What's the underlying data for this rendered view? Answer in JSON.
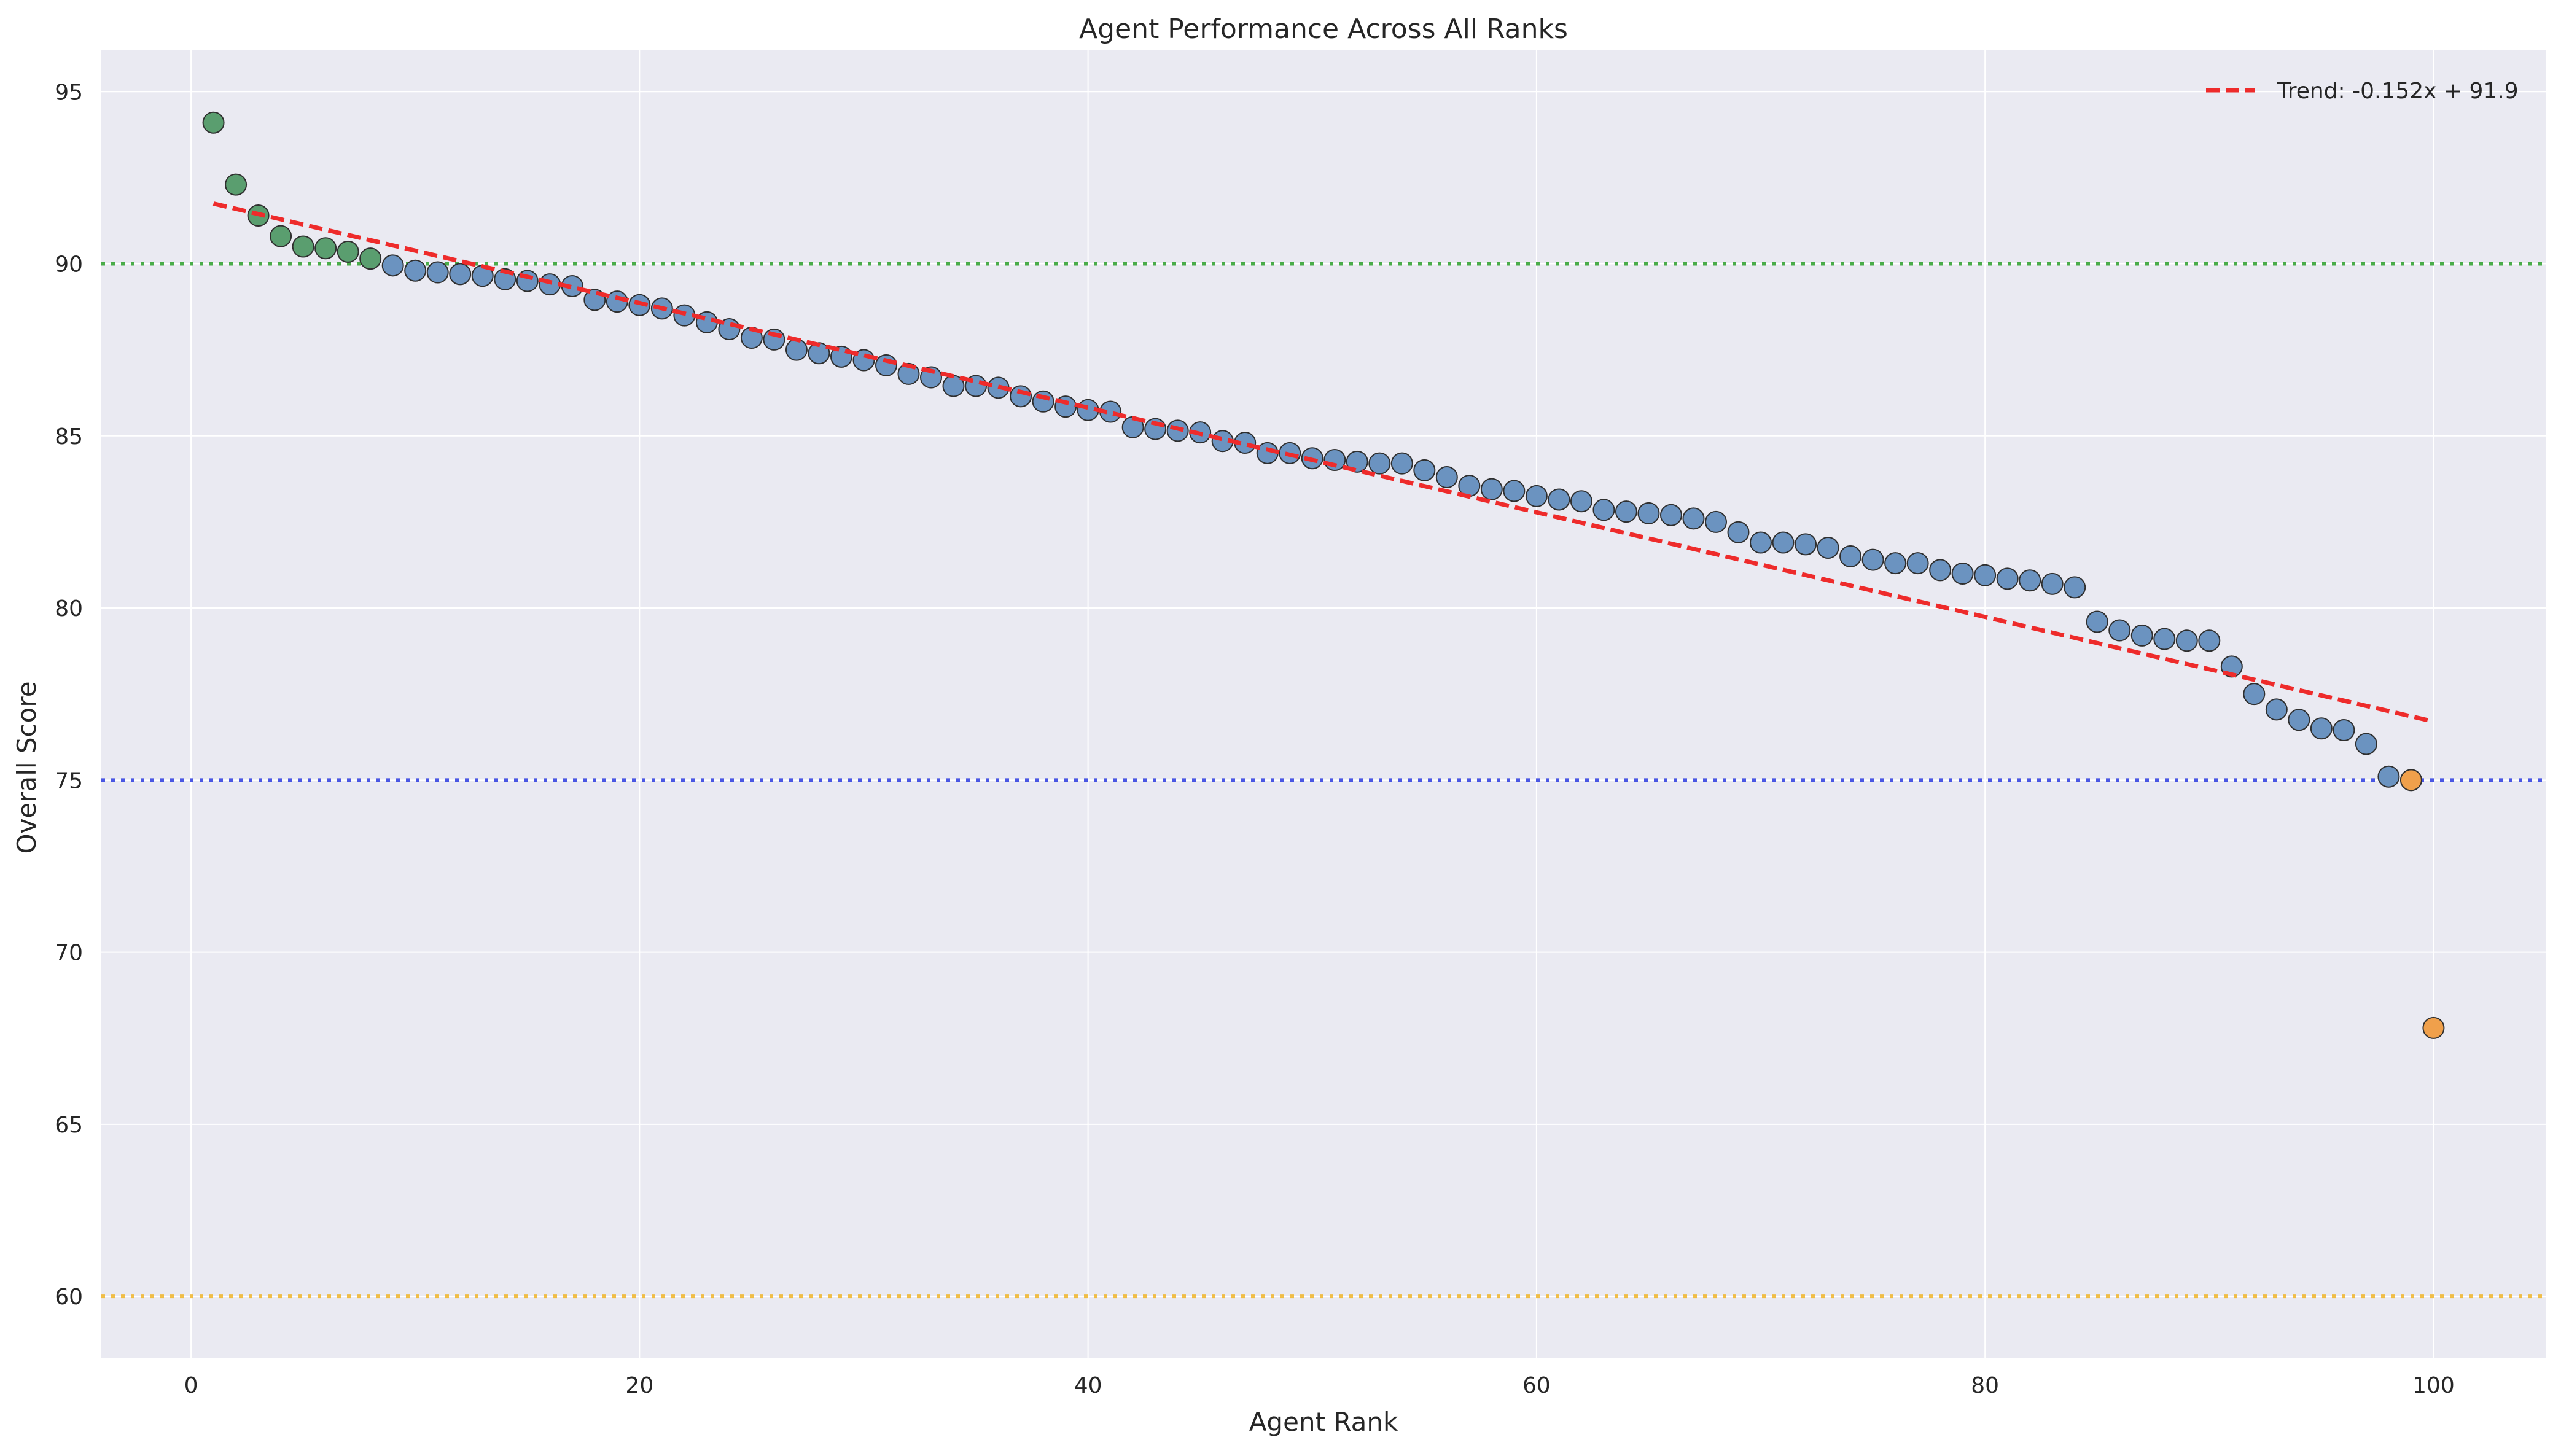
{
  "chart_data": {
    "type": "scatter",
    "title": "Agent Performance Across All Ranks",
    "xlabel": "Agent Rank",
    "ylabel": "Overall Score",
    "xlim": [
      -4,
      105
    ],
    "ylim": [
      58.2,
      96.2
    ],
    "x_ticks": [
      0,
      20,
      40,
      60,
      80,
      100
    ],
    "y_ticks": [
      60,
      65,
      70,
      75,
      80,
      85,
      90,
      95
    ],
    "grid": true,
    "legend_position": "top-right",
    "colors": {
      "background": "#eaeaf2",
      "grid": "#ffffff",
      "top_tier": "#5a9e6f",
      "mid_tier": "#6b93c0",
      "low_tier": "#f0a04b",
      "marker_edge": "#2f2f2f",
      "trend": "#ee2b2b"
    },
    "reference_lines": [
      {
        "y": 90,
        "color": "#2ca02c"
      },
      {
        "y": 75,
        "color": "#2c3ce0"
      },
      {
        "y": 60,
        "color": "#f0b429"
      }
    ],
    "trend": {
      "label": "Trend: -0.152x + 91.9",
      "slope": -0.152,
      "intercept": 91.9,
      "x_start": 1,
      "x_end": 100
    },
    "series": [
      {
        "tier": "top",
        "x": [
          1,
          2,
          3,
          4,
          5,
          6,
          7,
          8
        ],
        "y": [
          94.1,
          92.3,
          91.4,
          90.8,
          90.5,
          90.45,
          90.35,
          90.15
        ]
      },
      {
        "tier": "mid",
        "x": [
          9,
          10,
          11,
          12,
          13,
          14,
          15,
          16,
          17,
          18,
          19,
          20,
          21,
          22,
          23,
          24,
          25,
          26,
          27,
          28,
          29,
          30,
          31,
          32,
          33,
          34,
          35,
          36,
          37,
          38,
          39,
          40,
          41,
          42,
          43,
          44,
          45,
          46,
          47,
          48,
          49,
          50,
          51,
          52,
          53,
          54,
          55,
          56,
          57,
          58,
          59,
          60,
          61,
          62,
          63,
          64,
          65,
          66,
          67,
          68,
          69,
          70,
          71,
          72,
          73,
          74,
          75,
          76,
          77,
          78,
          79,
          80,
          81,
          82,
          83,
          84,
          85,
          86,
          87,
          88,
          89,
          90,
          91,
          92,
          93,
          94,
          95,
          96,
          97,
          98
        ],
        "y": [
          89.95,
          89.8,
          89.75,
          89.7,
          89.65,
          89.55,
          89.5,
          89.4,
          89.35,
          88.95,
          88.9,
          88.8,
          88.7,
          88.5,
          88.3,
          88.1,
          87.85,
          87.8,
          87.5,
          87.4,
          87.3,
          87.2,
          87.05,
          86.8,
          86.7,
          86.45,
          86.45,
          86.4,
          86.15,
          86.0,
          85.85,
          85.75,
          85.7,
          85.25,
          85.2,
          85.15,
          85.1,
          84.85,
          84.8,
          84.5,
          84.5,
          84.35,
          84.3,
          84.25,
          84.2,
          84.2,
          84.0,
          83.8,
          83.55,
          83.45,
          83.4,
          83.25,
          83.15,
          83.1,
          82.85,
          82.8,
          82.75,
          82.7,
          82.6,
          82.5,
          82.2,
          81.9,
          81.9,
          81.85,
          81.75,
          81.5,
          81.4,
          81.3,
          81.3,
          81.1,
          81.0,
          80.95,
          80.85,
          80.8,
          80.7,
          80.6,
          79.6,
          79.35,
          79.2,
          79.1,
          79.05,
          79.05,
          78.3,
          77.5,
          77.05,
          76.75,
          76.5,
          76.45,
          76.05,
          75.1
        ]
      },
      {
        "tier": "low",
        "x": [
          99,
          100
        ],
        "y": [
          75.0,
          67.8
        ]
      }
    ]
  }
}
